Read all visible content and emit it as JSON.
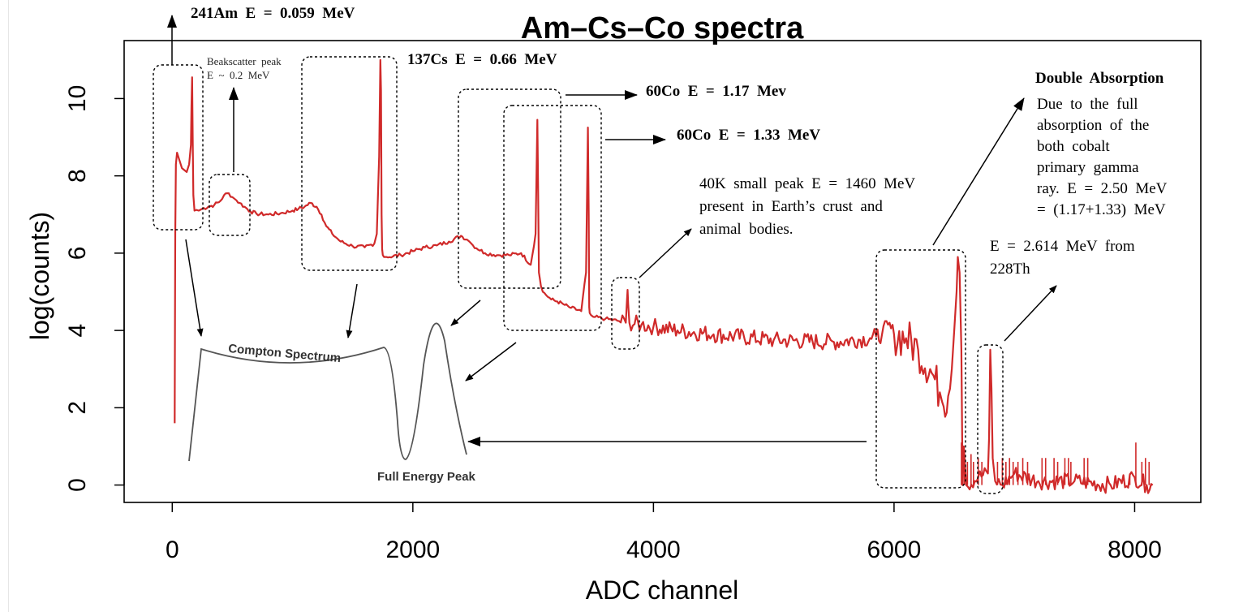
{
  "chart_data": {
    "type": "line",
    "title": "Am–Cs–Co spectra",
    "xlabel": "ADC channel",
    "ylabel": "log(counts)",
    "xlim": [
      -400,
      8550
    ],
    "ylim": [
      -0.45,
      11.5
    ],
    "x_ticks": [
      0,
      2000,
      4000,
      6000,
      8000
    ],
    "y_ticks": [
      0,
      2,
      4,
      6,
      8,
      10
    ],
    "series_color": "#d02a2a",
    "series": [
      {
        "x": [
          20,
          25,
          30,
          40,
          60,
          80,
          100,
          120,
          140,
          155,
          160,
          165,
          170,
          175,
          185,
          200,
          220,
          250,
          300,
          350,
          400,
          430,
          470,
          500,
          520,
          560,
          600,
          650,
          700,
          800,
          900,
          1000,
          1050,
          1100,
          1150,
          1200,
          1240,
          1280,
          1330,
          1400,
          1500,
          1600,
          1680,
          1700,
          1720,
          1730,
          1735,
          1740,
          1745,
          1750,
          1760,
          1780,
          1900,
          2000,
          2100,
          2200,
          2300,
          2400,
          2450,
          2470,
          2500,
          2600,
          2700,
          2800,
          2900,
          2980,
          3020,
          3035,
          3042,
          3048,
          3055,
          3065,
          3080,
          3150,
          3200,
          3250,
          3300,
          3400,
          3440,
          3455,
          3462,
          3466,
          3470,
          3480,
          3500,
          3600,
          3700,
          3770,
          3780,
          3785,
          3790,
          3800,
          3900,
          4000,
          4200,
          4500,
          5000,
          5500,
          5800,
          5850,
          5900,
          5950,
          6000,
          6100,
          6200,
          6300,
          6380,
          6400,
          6450,
          6480,
          6500,
          6520,
          6530,
          6545,
          6560,
          6570,
          6580,
          6600,
          6700,
          6780,
          6790,
          6800,
          6810,
          6820,
          6840,
          6900,
          7000,
          7200,
          7500,
          7800,
          8000,
          8100,
          8150
        ],
        "y": [
          1.6,
          6.5,
          8.3,
          8.6,
          8.4,
          8.2,
          8.15,
          8.1,
          8.3,
          8.8,
          9.8,
          10.55,
          9.0,
          7.5,
          7.1,
          7.12,
          7.1,
          7.15,
          7.2,
          7.25,
          7.35,
          7.5,
          7.55,
          7.45,
          7.4,
          7.3,
          7.2,
          7.08,
          7.02,
          7.0,
          7.03,
          7.1,
          7.15,
          7.2,
          7.3,
          7.2,
          7.0,
          6.7,
          6.5,
          6.3,
          6.18,
          6.15,
          6.25,
          6.5,
          8.5,
          11.0,
          10.2,
          7.0,
          6.1,
          5.95,
          5.9,
          5.9,
          5.95,
          6.05,
          6.15,
          6.2,
          6.3,
          6.45,
          6.35,
          6.3,
          6.2,
          6.0,
          5.95,
          5.95,
          6.0,
          5.7,
          6.5,
          9.45,
          7.5,
          5.5,
          5.35,
          5.15,
          5.0,
          4.8,
          4.75,
          4.68,
          4.6,
          4.5,
          5.5,
          9.25,
          7.0,
          4.6,
          4.45,
          4.4,
          4.35,
          4.3,
          4.25,
          4.2,
          4.8,
          5.05,
          4.7,
          4.2,
          4.15,
          4.1,
          4.0,
          3.9,
          3.75,
          3.7,
          3.8,
          3.85,
          3.9,
          4.15,
          3.9,
          3.8,
          3.5,
          3.0,
          2.4,
          2.15,
          2.3,
          3.0,
          4.0,
          5.0,
          5.9,
          5.5,
          3.5,
          0.0,
          1.0,
          0.0,
          0.2,
          0.3,
          1.2,
          3.5,
          2.5,
          0.7,
          0.1,
          0.0,
          0.3,
          0.1,
          0.1,
          0.0,
          0.2,
          0.0,
          0.0
        ]
      }
    ]
  },
  "annotations": {
    "am241": "241Am  E  =  0.059  MeV",
    "backscatter_line1": "Beakscatter  peak",
    "backscatter_line2": "E  ~  0.2  MeV",
    "cs137": "137Cs  E  =  0.66  MeV",
    "co60_117": "60Co  E  =  1.17  Mev",
    "co60_133": "60Co  E  =  1.33  MeV",
    "k40_line1": "40K  small  peak  E  =  1460  MeV",
    "k40_line2": "present  in  Earth’s  crust  and",
    "k40_line3": "animal  bodies.",
    "double_title": "Double  Absorption",
    "double_line1": "Due  to  the  full",
    "double_line2": "absorption  of  the",
    "double_line3": "both  cobalt",
    "double_line4": "primary  gamma",
    "double_line5": "ray.  E  =  2.50  MeV",
    "double_line6": "=  (1.17+1.33)  MeV",
    "th228_line1": "E  =  2.614  MeV  from",
    "th228_line2": "228Th",
    "compton_label": "Compton Spectrum",
    "full_energy_label": "Full Energy Peak"
  }
}
